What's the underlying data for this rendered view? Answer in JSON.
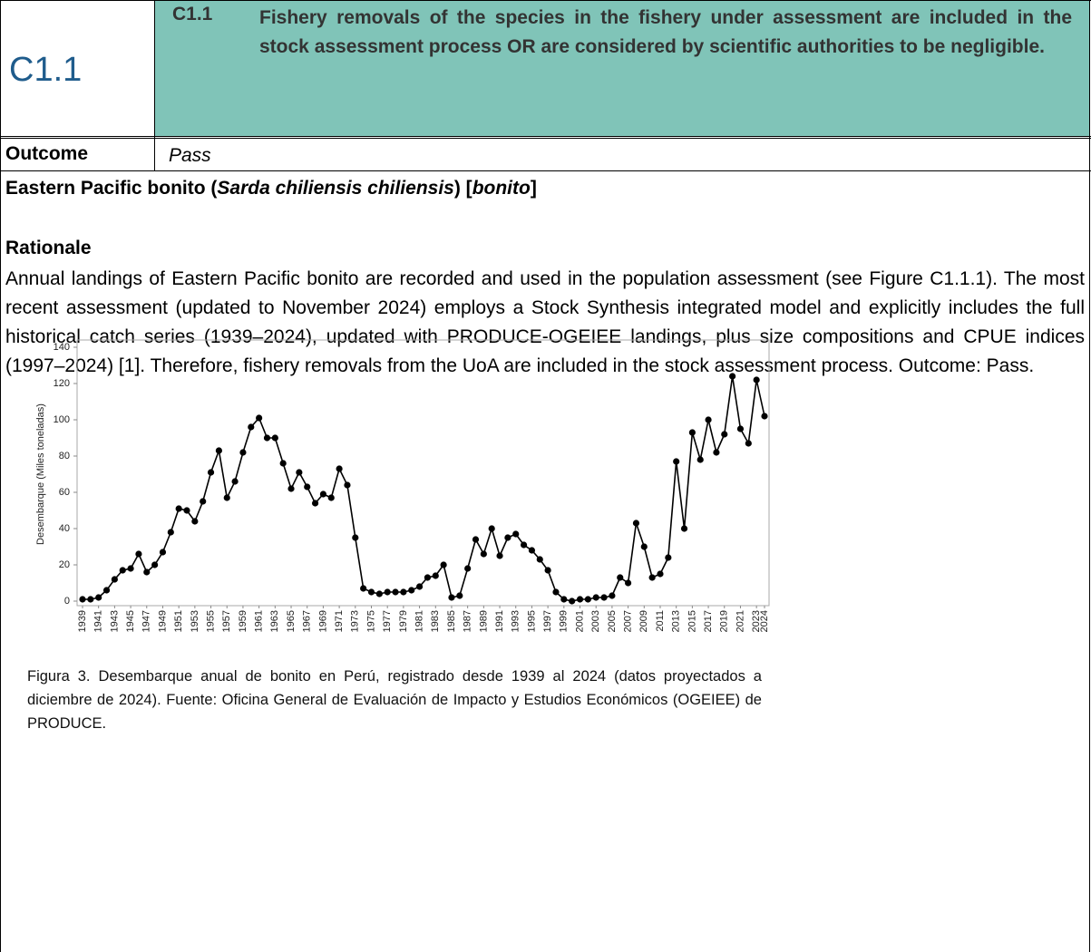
{
  "header": {
    "code": "C1.1",
    "criterion_number": "C1.1",
    "criterion_text": "Fishery removals of the species in the fishery under assessment are included in the stock assessment process OR are considered by scientific authorities to be negligible."
  },
  "outcome": {
    "label": "Outcome",
    "value": "Pass"
  },
  "species": {
    "parts": [
      "Eastern Pacific bonito (",
      "Sarda chiliensis chiliensis",
      ") [",
      "bonito",
      "]"
    ]
  },
  "rationale": {
    "heading": "Rationale",
    "text": "Annual landings of Eastern Pacific bonito are recorded and used in the population assessment (see Figure C1.1.1). The most recent assessment (updated to November 2024) employs a Stock Synthesis integrated model and explicitly includes the full historical catch series (1939–2024), updated with PRODUCE-OGEIEE landings, plus size compositions and CPUE indices (1997–2024) [1]. Therefore, fishery removals from the UoA are included in the stock assessment process. Outcome: Pass."
  },
  "caption": "Figura 3. Desembarque anual de bonito en Perú, registrado desde 1939 al 2024 (datos proyectados a diciembre de 2024). Fuente: Oficina General de Evaluación de Impacto y Estudios Económicos (OGEIEE) de PRODUCE.",
  "chart_data": {
    "type": "line",
    "y_label": "Desembarque (Miles toneladas)",
    "color": "#000000",
    "x": [
      1939,
      1940,
      1941,
      1942,
      1943,
      1944,
      1945,
      1946,
      1947,
      1948,
      1949,
      1950,
      1951,
      1952,
      1953,
      1954,
      1955,
      1956,
      1957,
      1958,
      1959,
      1960,
      1961,
      1962,
      1963,
      1964,
      1965,
      1966,
      1967,
      1968,
      1969,
      1970,
      1971,
      1972,
      1973,
      1974,
      1975,
      1976,
      1977,
      1978,
      1979,
      1980,
      1981,
      1982,
      1983,
      1984,
      1985,
      1986,
      1987,
      1988,
      1989,
      1990,
      1991,
      1992,
      1993,
      1994,
      1995,
      1996,
      1997,
      1998,
      1999,
      2000,
      2001,
      2002,
      2003,
      2004,
      2005,
      2006,
      2007,
      2008,
      2009,
      2010,
      2011,
      2012,
      2013,
      2014,
      2015,
      2016,
      2017,
      2018,
      2019,
      2020,
      2021,
      2022,
      2023,
      2024
    ],
    "values": [
      1,
      1,
      2,
      6,
      12,
      17,
      18,
      26,
      16,
      20,
      27,
      38,
      51,
      50,
      44,
      55,
      71,
      83,
      57,
      66,
      82,
      96,
      101,
      90,
      90,
      76,
      62,
      71,
      63,
      54,
      59,
      57,
      73,
      64,
      35,
      7,
      5,
      4,
      5,
      5,
      5,
      6,
      8,
      13,
      14,
      20,
      2,
      3,
      18,
      34,
      26,
      40,
      25,
      35,
      37,
      31,
      28,
      23,
      17,
      5,
      1,
      0,
      1,
      1,
      2,
      2,
      3,
      13,
      10,
      43,
      30,
      13,
      15,
      24,
      77,
      40,
      93,
      78,
      100,
      82,
      92,
      124,
      95,
      87,
      122,
      102
    ],
    "xlim": [
      1939,
      2024
    ],
    "xticks": [
      1939,
      1941,
      1943,
      1945,
      1947,
      1949,
      1951,
      1953,
      1955,
      1957,
      1959,
      1961,
      1963,
      1965,
      1967,
      1969,
      1971,
      1973,
      1975,
      1977,
      1979,
      1981,
      1983,
      1985,
      1987,
      1989,
      1991,
      1993,
      1995,
      1997,
      1999,
      2001,
      2003,
      2005,
      2007,
      2009,
      2011,
      2013,
      2015,
      2017,
      2019,
      2021,
      2023,
      2024
    ],
    "ylim": [
      0,
      140
    ],
    "yticks": [
      0,
      20,
      40,
      60,
      80,
      100,
      120,
      140
    ]
  }
}
